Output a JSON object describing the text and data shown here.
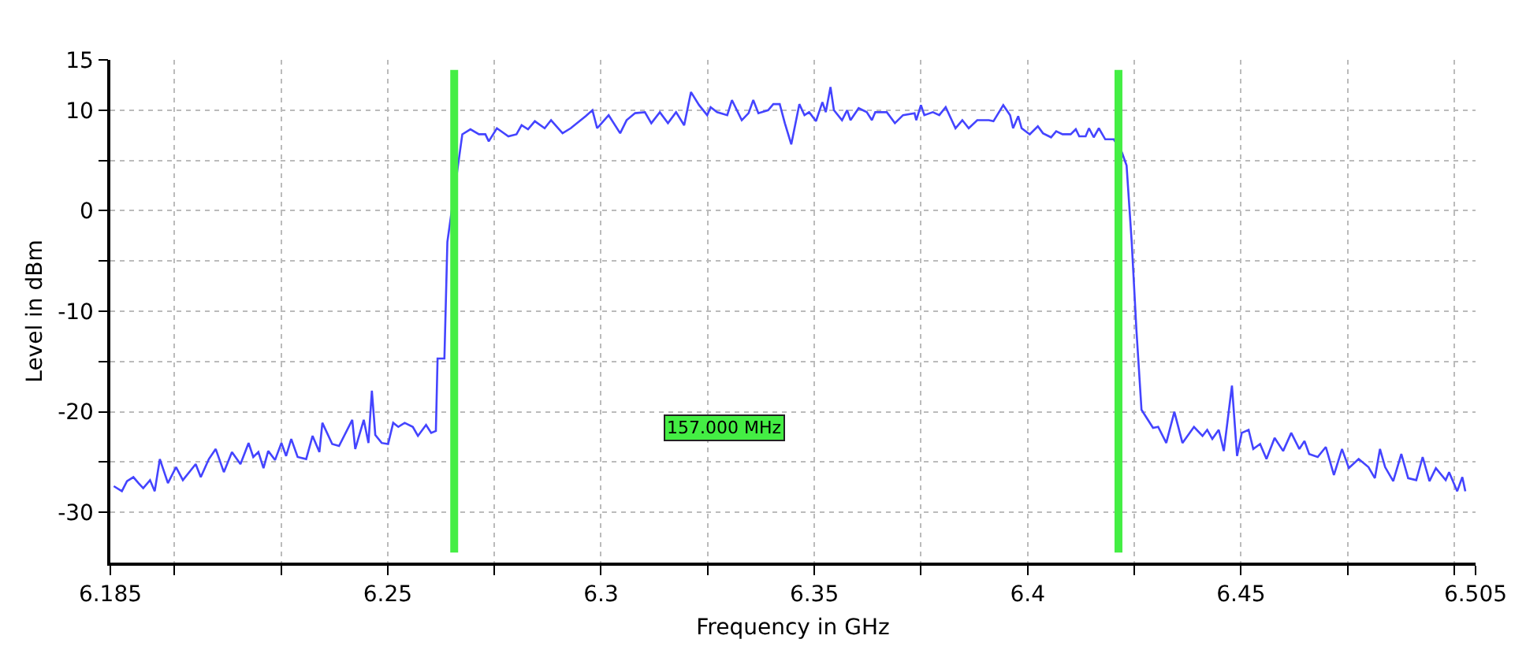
{
  "chart_data": {
    "type": "line",
    "xlabel": "Frequency in GHz",
    "ylabel": "Level in dBm",
    "xlim": [
      6.185,
      6.505
    ],
    "ylim": [
      -35,
      15
    ],
    "xticks": [
      6.185,
      {
        "value": 6.2,
        "label": null
      },
      {
        "value": 6.225,
        "label": null
      },
      6.25,
      {
        "value": 6.275,
        "label": null
      },
      6.3,
      {
        "value": 6.325,
        "label": null
      },
      6.35,
      {
        "value": 6.375,
        "label": null
      },
      6.4,
      {
        "value": 6.425,
        "label": null
      },
      6.45,
      {
        "value": 6.475,
        "label": null
      },
      {
        "value": 6.5,
        "label": null
      },
      6.505
    ],
    "yticks": [
      15,
      10,
      {
        "value": 5,
        "label": null
      },
      0,
      {
        "value": -5,
        "label": null
      },
      -10,
      {
        "value": -15,
        "label": null
      },
      -20,
      {
        "value": -25,
        "label": null
      },
      -30
    ],
    "grid": true,
    "marker": "none",
    "line_style": "solid",
    "series": [
      {
        "color": "#4444ff",
        "x": [
          6.1858,
          6.1877,
          6.1889,
          6.1904,
          6.1916,
          6.1927,
          6.1943,
          6.1954,
          6.1966,
          6.1985,
          6.2004,
          6.202,
          6.205,
          6.2062,
          6.2081,
          6.2097,
          6.2116,
          6.2135,
          6.2155,
          6.2174,
          6.2185,
          6.2197,
          6.2209,
          6.222,
          6.2236,
          6.2251,
          6.2262,
          6.2274,
          6.2289,
          6.2309,
          6.2324,
          6.234,
          6.2347,
          6.237,
          6.2386,
          6.2417,
          6.2424,
          6.2444,
          6.2455,
          6.2463,
          6.2471,
          6.2486,
          6.2501,
          6.2513,
          6.2525,
          6.254,
          6.2559,
          6.2571,
          6.259,
          6.2602,
          6.2613,
          6.2617,
          6.2633,
          6.264,
          6.2656,
          6.2675,
          6.2694,
          6.2714,
          6.2729,
          6.2737,
          6.2756,
          6.2783,
          6.2802,
          6.2814,
          6.2829,
          6.2845,
          6.2868,
          6.2883,
          6.291,
          6.2929,
          6.2964,
          6.298,
          6.2991,
          6.3018,
          6.3045,
          6.306,
          6.308,
          6.3103,
          6.3118,
          6.3138,
          6.3157,
          6.3176,
          6.3195,
          6.3211,
          6.323,
          6.3249,
          6.3257,
          6.3272,
          6.3296,
          6.3307,
          6.333,
          6.3346,
          6.3357,
          6.3369,
          6.3392,
          6.3404,
          6.3419,
          6.3431,
          6.3446,
          6.3465,
          6.3477,
          6.3488,
          6.3504,
          6.3519,
          6.3527,
          6.3538,
          6.3546,
          6.3565,
          6.3577,
          6.3585,
          6.3604,
          6.3623,
          6.3635,
          6.3643,
          6.367,
          6.3689,
          6.3708,
          6.3735,
          6.3739,
          6.375,
          6.3758,
          6.3778,
          6.3793,
          6.3808,
          6.3831,
          6.3847,
          6.3862,
          6.3882,
          6.3909,
          6.392,
          6.3943,
          6.3959,
          6.3966,
          6.3978,
          6.3986,
          6.4005,
          6.4024,
          6.4036,
          6.4055,
          6.4067,
          6.4082,
          6.4101,
          6.4113,
          6.4121,
          6.4136,
          6.4144,
          6.4155,
          6.4167,
          6.4182,
          6.4202,
          6.4221,
          6.4232,
          6.4244,
          6.4255,
          6.4267,
          6.4294,
          6.4306,
          6.4325,
          6.4344,
          6.4363,
          6.439,
          6.441,
          6.4421,
          6.4433,
          6.4448,
          6.446,
          6.4479,
          6.4491,
          6.4502,
          6.4518,
          6.4529,
          6.4545,
          6.456,
          6.4579,
          6.4599,
          6.4618,
          6.4637,
          6.4649,
          6.466,
          6.468,
          6.4699,
          6.4718,
          6.4737,
          6.4753,
          6.4776,
          6.4799,
          6.4814,
          6.4826,
          6.4838,
          6.4857,
          6.4876,
          6.4892,
          6.4911,
          6.4926,
          6.4942,
          6.4957,
          6.498,
          6.4988,
          6.5007,
          6.5019,
          6.5026
        ],
        "values": [
          -27.4,
          -27.9,
          -26.9,
          -26.5,
          -27.1,
          -27.6,
          -26.8,
          -27.9,
          -24.7,
          -27.1,
          -25.5,
          -26.8,
          -25.2,
          -26.5,
          -24.7,
          -23.7,
          -26.0,
          -24.0,
          -25.2,
          -23.1,
          -24.5,
          -24.0,
          -25.6,
          -23.9,
          -24.8,
          -23.1,
          -24.4,
          -22.7,
          -24.5,
          -24.7,
          -22.4,
          -24.0,
          -21.1,
          -23.2,
          -23.4,
          -20.8,
          -23.7,
          -20.8,
          -23.1,
          -17.9,
          -22.3,
          -23.1,
          -23.2,
          -21.1,
          -21.5,
          -21.1,
          -21.5,
          -22.4,
          -21.3,
          -22.1,
          -21.9,
          -14.7,
          -14.7,
          -3.1,
          null,
          7.6,
          8.1,
          7.6,
          7.6,
          6.9,
          8.2,
          7.4,
          7.6,
          8.5,
          8.1,
          8.9,
          8.2,
          9.0,
          7.7,
          8.2,
          9.4,
          10.0,
          8.2,
          9.5,
          7.7,
          9.0,
          9.7,
          9.8,
          8.7,
          9.8,
          8.7,
          9.8,
          8.5,
          11.8,
          10.5,
          9.5,
          10.3,
          9.8,
          9.5,
          11.0,
          9.0,
          9.7,
          11.0,
          9.7,
          10.0,
          10.6,
          10.6,
          8.7,
          6.6,
          10.6,
          9.5,
          9.8,
          8.9,
          10.8,
          9.8,
          12.3,
          10.0,
          9.0,
          10.0,
          9.0,
          10.2,
          9.8,
          9.0,
          9.8,
          9.8,
          8.7,
          9.5,
          9.7,
          9.0,
          10.5,
          9.5,
          9.8,
          9.5,
          10.3,
          8.2,
          9.0,
          8.2,
          9.0,
          9.0,
          8.9,
          10.5,
          9.5,
          8.2,
          9.4,
          8.2,
          7.6,
          8.4,
          7.7,
          7.3,
          7.9,
          7.6,
          7.6,
          8.1,
          7.4,
          7.4,
          8.2,
          7.3,
          8.2,
          7.1,
          7.1,
          5.8,
          4.5,
          -3.1,
          -11.8,
          -19.8,
          -21.6,
          -21.5,
          -23.1,
          -20.0,
          -23.1,
          -21.5,
          -22.4,
          -21.8,
          -22.7,
          -21.8,
          -23.9,
          -17.4,
          -24.4,
          -22.1,
          -21.8,
          -23.7,
          -23.2,
          -24.7,
          -22.6,
          -23.9,
          -22.1,
          -23.7,
          -22.9,
          -24.2,
          -24.5,
          -23.5,
          -26.3,
          -23.7,
          -25.6,
          -24.7,
          -25.5,
          -26.6,
          -23.7,
          -25.5,
          -26.9,
          -24.2,
          -26.6,
          -26.8,
          -24.5,
          -26.9,
          -25.6,
          -26.8,
          -26.0,
          -27.9,
          -26.5,
          -27.9
        ]
      }
    ],
    "ref_lines": [
      {
        "axis": "x",
        "value": 6.2656,
        "color": "#44ee44",
        "line_style": "solid"
      },
      {
        "axis": "x",
        "value": 6.4213,
        "color": "#44ee44",
        "line_style": "solid"
      }
    ],
    "annotations": [
      "157.000 MHz"
    ]
  }
}
